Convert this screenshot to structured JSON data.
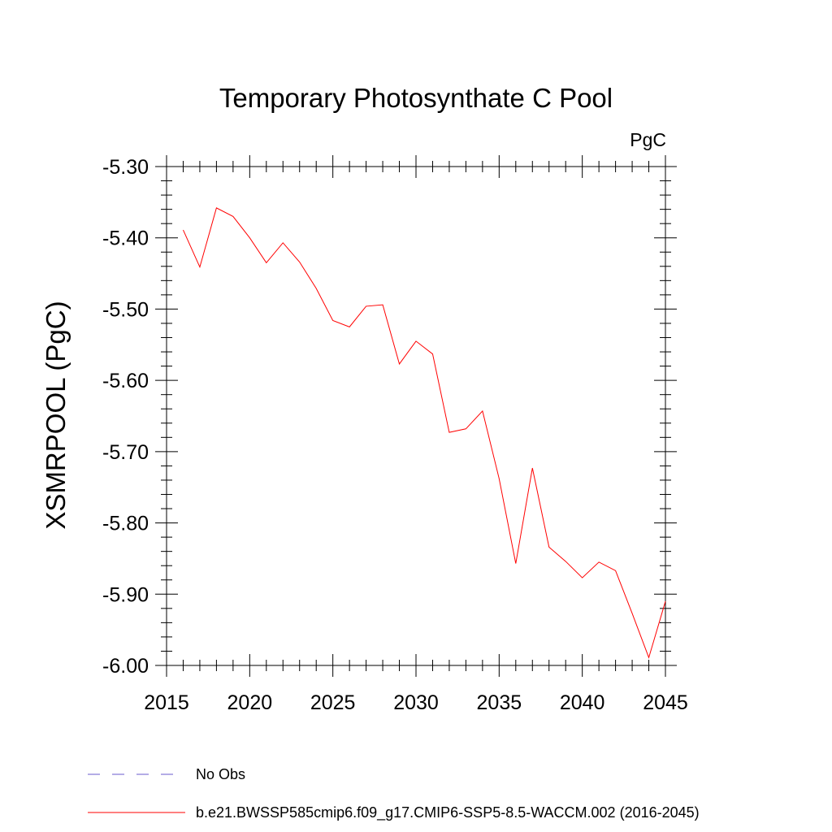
{
  "chart_data": {
    "type": "line",
    "title": "Temporary Photosynthate C Pool",
    "units_label": "PgC",
    "xlabel": "",
    "ylabel": "XSMRPOOL  (PgC)",
    "xlim": [
      2015,
      2045
    ],
    "ylim": [
      -6.0,
      -5.3
    ],
    "xticks": [
      2015,
      2020,
      2025,
      2030,
      2035,
      2040,
      2045
    ],
    "xtick_labels": [
      "2015",
      "2020",
      "2025",
      "2030",
      "2035",
      "2040",
      "2045"
    ],
    "yticks": [
      -6.0,
      -5.9,
      -5.8,
      -5.7,
      -5.6,
      -5.5,
      -5.4,
      -5.3
    ],
    "ytick_labels": [
      "-6.00",
      "-5.90",
      "-5.80",
      "-5.70",
      "-5.60",
      "-5.50",
      "-5.40",
      "-5.30"
    ],
    "grid": false,
    "legend_position": "bottom-left",
    "series": [
      {
        "name": "b.e21.BWSSP585cmip6.f09_g17.CMIP6-SSP5-8.5-WACCM.002 (2016-2045)",
        "color": "#ff0000",
        "style": "solid",
        "x": [
          2016,
          2017,
          2018,
          2019,
          2020,
          2021,
          2022,
          2023,
          2024,
          2025,
          2026,
          2027,
          2028,
          2029,
          2030,
          2031,
          2032,
          2033,
          2034,
          2035,
          2036,
          2037,
          2038,
          2039,
          2040,
          2041,
          2042,
          2043,
          2044,
          2045
        ],
        "values": [
          -5.389,
          -5.441,
          -5.358,
          -5.37,
          -5.4,
          -5.435,
          -5.407,
          -5.434,
          -5.471,
          -5.516,
          -5.525,
          -5.496,
          -5.494,
          -5.577,
          -5.545,
          -5.563,
          -5.673,
          -5.668,
          -5.643,
          -5.738,
          -5.857,
          -5.723,
          -5.834,
          -5.854,
          -5.877,
          -5.855,
          -5.867,
          -5.927,
          -5.989,
          -5.91
        ]
      }
    ],
    "legend": [
      {
        "label": "No Obs",
        "color": "#6a5acd",
        "style": "dashed"
      },
      {
        "label": "b.e21.BWSSP585cmip6.f09_g17.CMIP6-SSP5-8.5-WACCM.002 (2016-2045)",
        "color": "#ff0000",
        "style": "solid"
      }
    ]
  }
}
